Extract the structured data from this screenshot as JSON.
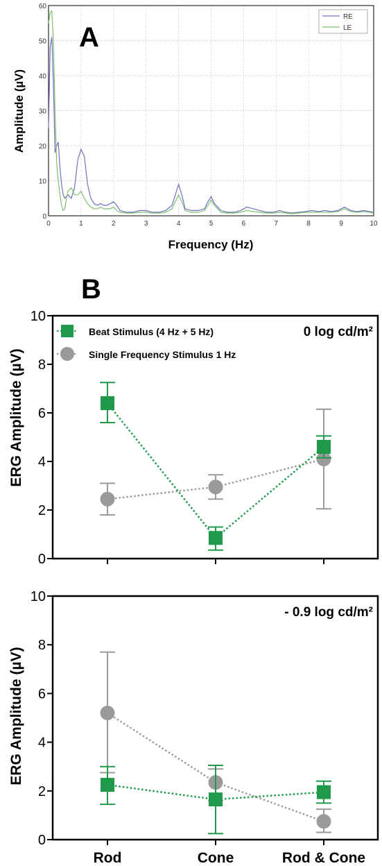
{
  "panels": {
    "a": {
      "letter": "A"
    },
    "b": {
      "letter": "B"
    }
  },
  "colors": {
    "re": "#6f6fc0",
    "le": "#7fbf72",
    "beat": "#1e9a4a",
    "single": "#9a9a9a",
    "axis": "#000000",
    "grid": "#c8c8c8"
  },
  "chart_data": [
    {
      "id": "panel-a",
      "type": "line",
      "title": "",
      "xlabel": "Frequency (Hz)",
      "ylabel": "Amplitude (µV)",
      "xlim": [
        0,
        10
      ],
      "ylim": [
        0,
        60
      ],
      "xticks": [
        "0",
        "1",
        "2",
        "3",
        "4",
        "5",
        "6",
        "7",
        "8",
        "9",
        "10"
      ],
      "yticks": [
        "0",
        "10",
        "20",
        "30",
        "40",
        "50",
        "60"
      ],
      "grid": true,
      "legend": "top-right",
      "series": [
        {
          "name": "RE",
          "color": "#6f6fc0",
          "x": [
            0,
            0.05,
            0.1,
            0.15,
            0.2,
            0.25,
            0.3,
            0.35,
            0.4,
            0.45,
            0.5,
            0.55,
            0.6,
            0.7,
            0.8,
            0.9,
            1.0,
            1.1,
            1.2,
            1.3,
            1.4,
            1.5,
            1.6,
            1.7,
            1.8,
            1.9,
            2.0,
            2.1,
            2.2,
            2.4,
            2.6,
            2.8,
            3.0,
            3.2,
            3.4,
            3.6,
            3.8,
            3.9,
            4.0,
            4.1,
            4.2,
            4.4,
            4.6,
            4.8,
            4.9,
            5.0,
            5.1,
            5.3,
            5.5,
            5.7,
            5.9,
            6.1,
            6.3,
            6.5,
            6.7,
            6.9,
            7.1,
            7.3,
            7.5,
            7.7,
            7.9,
            8.1,
            8.3,
            8.5,
            8.7,
            8.9,
            9.1,
            9.3,
            9.5,
            9.7,
            10.0
          ],
          "y": [
            25,
            48,
            51,
            38,
            18,
            20,
            21,
            14,
            9,
            6,
            5,
            5.5,
            6,
            5,
            8,
            16,
            19,
            17,
            9,
            5,
            3.5,
            3,
            3.5,
            3,
            3,
            3.5,
            4,
            3,
            1.5,
            1,
            1,
            1.5,
            1.5,
            1,
            1,
            1.5,
            3,
            6,
            9,
            6,
            2,
            1.5,
            1.5,
            2,
            4,
            5.5,
            3.5,
            1.5,
            1,
            1,
            1.5,
            2.5,
            2,
            1.5,
            1,
            1,
            1.5,
            1,
            0.8,
            1,
            1.2,
            1.5,
            1.2,
            1.5,
            1.2,
            1.5,
            2.5,
            1.5,
            1.2,
            1.5,
            1
          ]
        },
        {
          "name": "LE",
          "color": "#7fbf72",
          "x": [
            0,
            0.05,
            0.1,
            0.15,
            0.2,
            0.25,
            0.3,
            0.35,
            0.4,
            0.45,
            0.5,
            0.55,
            0.6,
            0.7,
            0.8,
            0.9,
            1.0,
            1.1,
            1.2,
            1.3,
            1.4,
            1.5,
            1.6,
            1.7,
            1.8,
            1.9,
            2.0,
            2.1,
            2.2,
            2.4,
            2.6,
            2.8,
            3.0,
            3.2,
            3.4,
            3.6,
            3.8,
            3.9,
            4.0,
            4.1,
            4.2,
            4.4,
            4.6,
            4.8,
            4.9,
            5.0,
            5.1,
            5.3,
            5.5,
            5.7,
            5.9,
            6.1,
            6.3,
            6.5,
            6.7,
            6.9,
            7.1,
            7.3,
            7.5,
            7.7,
            7.9,
            8.1,
            8.3,
            8.5,
            8.7,
            8.9,
            9.1,
            9.3,
            9.5,
            9.7,
            10.0
          ],
          "y": [
            55,
            58,
            58.5,
            50,
            30,
            15,
            10,
            6,
            3,
            1.5,
            2,
            5,
            7,
            8,
            6,
            6,
            7,
            5,
            3.5,
            2.5,
            2,
            2,
            2.5,
            2,
            2,
            2,
            2.5,
            1.5,
            1,
            0.8,
            0.8,
            1,
            1,
            0.8,
            0.8,
            1,
            2,
            4,
            6,
            4,
            1.5,
            1,
            1,
            1.5,
            3,
            4.5,
            3,
            1,
            0.8,
            0.8,
            1,
            1.5,
            1.2,
            1,
            0.8,
            0.8,
            1,
            0.8,
            0.6,
            0.8,
            1,
            1,
            1,
            1,
            1,
            1.2,
            2,
            1.2,
            1,
            1.2,
            0.8
          ]
        }
      ]
    },
    {
      "id": "panel-b-top",
      "type": "scatter",
      "title": "",
      "annotation": "0 log cd/m²",
      "xlabel": "",
      "ylabel": "ERG Amplitude (µV)",
      "categories": [
        "Rod",
        "Cone",
        "Rod & Cone"
      ],
      "ylim": [
        0,
        10
      ],
      "yticks": [
        "0",
        "2",
        "4",
        "6",
        "8",
        "10"
      ],
      "grid": false,
      "legend": "top-left",
      "series": [
        {
          "name": "Beat Stimulus (4 Hz + 5 Hz)",
          "marker": "square",
          "color": "#1e9a4a",
          "values": [
            6.4,
            0.85,
            4.6
          ],
          "err_low": [
            5.6,
            0.35,
            4.15
          ],
          "err_high": [
            7.25,
            1.3,
            5.05
          ]
        },
        {
          "name": "Single Frequency Stimulus 1 Hz",
          "marker": "circle",
          "color": "#9a9a9a",
          "values": [
            2.45,
            2.95,
            4.1
          ],
          "err_low": [
            1.8,
            2.45,
            2.05
          ],
          "err_high": [
            3.1,
            3.45,
            6.15
          ]
        }
      ]
    },
    {
      "id": "panel-b-bottom",
      "type": "scatter",
      "title": "",
      "annotation": "- 0.9 log cd/m²",
      "xlabel": "",
      "ylabel": "ERG Amplitude (µV)",
      "categories": [
        "Rod",
        "Cone",
        "Rod & Cone"
      ],
      "ylim": [
        0,
        10
      ],
      "yticks": [
        "0",
        "2",
        "4",
        "6",
        "8",
        "10"
      ],
      "grid": false,
      "series": [
        {
          "name": "",
          "marker": "square",
          "color": "#1e9a4a",
          "values": [
            2.25,
            1.65,
            1.95
          ],
          "err_low": [
            1.45,
            0.25,
            1.5
          ],
          "err_high": [
            3.0,
            3.05,
            2.4
          ]
        },
        {
          "name": "",
          "marker": "circle",
          "color": "#9a9a9a",
          "values": [
            5.2,
            2.35,
            0.75
          ],
          "err_low": [
            2.75,
            1.6,
            0.3
          ],
          "err_high": [
            7.7,
            2.9,
            1.25
          ]
        }
      ]
    }
  ]
}
